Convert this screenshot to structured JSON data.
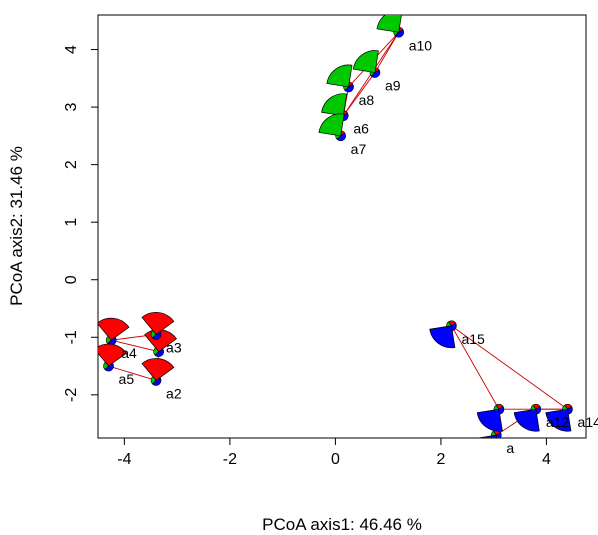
{
  "chart_data": {
    "type": "scatter",
    "title": "",
    "xlabel": "PCoA axis1: 46.46 %",
    "ylabel": "PCoA axis2: 31.46 %",
    "xlim": [
      -4.5,
      4.75
    ],
    "ylim": [
      -2.75,
      4.6
    ],
    "x_ticks": [
      -4,
      -2,
      0,
      2,
      4
    ],
    "y_ticks": [
      -2,
      -1,
      0,
      1,
      2,
      3,
      4
    ],
    "x_tick_labels": [
      "-4",
      "-2",
      "0",
      "2",
      "4"
    ],
    "y_tick_labels": [
      "-2",
      "-1",
      "0",
      "1",
      "2",
      "3",
      "4"
    ],
    "grid": false,
    "legend": "none",
    "colors": {
      "red": "#ff0000",
      "green": "#00c800",
      "blue": "#0000ff",
      "edge": "#cc0000"
    },
    "points": [
      {
        "id": "a1",
        "x": -3.35,
        "y": -1.25,
        "label": "",
        "fan": "red"
      },
      {
        "id": "a2",
        "x": -3.4,
        "y": -1.75,
        "label": "a2",
        "fan": "red"
      },
      {
        "id": "a3",
        "x": -3.4,
        "y": -0.95,
        "label": "a3",
        "fan": "red"
      },
      {
        "id": "a4",
        "x": -4.25,
        "y": -1.05,
        "label": "a4",
        "fan": "red"
      },
      {
        "id": "a5",
        "x": -4.3,
        "y": -1.5,
        "label": "a5",
        "fan": "red"
      },
      {
        "id": "a6",
        "x": 0.15,
        "y": 2.85,
        "label": "a6",
        "fan": "green"
      },
      {
        "id": "a7",
        "x": 0.1,
        "y": 2.5,
        "label": "a7",
        "fan": "green"
      },
      {
        "id": "a8",
        "x": 0.25,
        "y": 3.35,
        "label": "a8",
        "fan": "green"
      },
      {
        "id": "a9",
        "x": 0.75,
        "y": 3.6,
        "label": "a9",
        "fan": "green"
      },
      {
        "id": "a10",
        "x": 1.2,
        "y": 4.3,
        "label": "a10",
        "fan": "green"
      },
      {
        "id": "a11",
        "x": 3.05,
        "y": -2.7,
        "label": "a",
        "fan": "blue"
      },
      {
        "id": "a12",
        "x": 3.8,
        "y": -2.25,
        "label": "a12",
        "fan": "blue"
      },
      {
        "id": "a13",
        "x": 3.1,
        "y": -2.25,
        "label": "",
        "fan": "blue"
      },
      {
        "id": "a14",
        "x": 4.4,
        "y": -2.25,
        "label": "a14",
        "fan": "blue"
      },
      {
        "id": "a15",
        "x": 2.2,
        "y": -0.8,
        "label": "a15",
        "fan": "blue"
      }
    ]
  }
}
